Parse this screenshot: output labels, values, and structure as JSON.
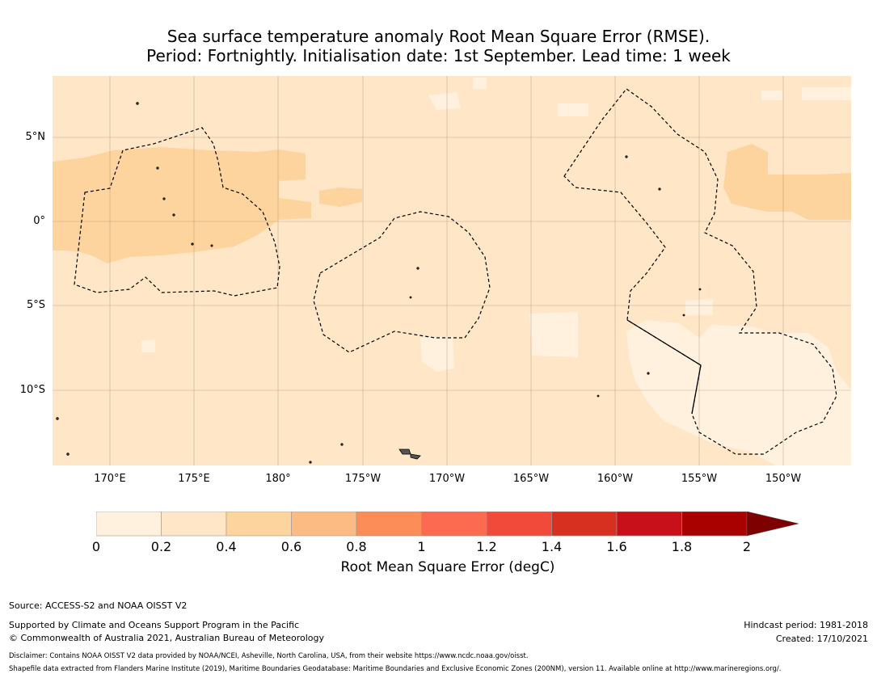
{
  "title": {
    "line1": "Sea surface temperature anomaly Root Mean Square Error (RMSE).",
    "line2": "Period: Fortnightly. Initialisation date: 1st September. Lead time: 1 week"
  },
  "map": {
    "lon_ticks": [
      "170°E",
      "175°E",
      "180°",
      "175°W",
      "170°W",
      "165°W",
      "160°W",
      "155°W",
      "150°W"
    ],
    "lat_ticks": [
      "5°N",
      "0°",
      "5°S",
      "10°S"
    ],
    "background_color": "#fee6c7",
    "regions": [
      {
        "level": "0.4-0.6",
        "color": "#fdd49e"
      },
      {
        "level": "0-0.2",
        "color": "#fff1de"
      }
    ]
  },
  "colorbar": {
    "ticks": [
      "0",
      "0.2",
      "0.4",
      "0.6",
      "0.8",
      "1",
      "1.2",
      "1.4",
      "1.6",
      "1.8",
      "2"
    ],
    "colors": [
      "#fff1de",
      "#fee6c7",
      "#fdd49e",
      "#fdbb84",
      "#fc8d59",
      "#fc6a50",
      "#f24a3a",
      "#d73020",
      "#c8101a",
      "#a90000",
      "#7f0000"
    ],
    "label": "Root Mean Square Error (degC)"
  },
  "footer": {
    "source": "Source: ACCESS-S2 and NOAA OISST V2",
    "supported": "Supported by Climate and Oceans Support Program in the Pacific",
    "copyright": "© Commonwealth of Australia 2021, Australian Bureau of Meteorology",
    "hindcast": "Hindcast period: 1981-2018",
    "created": "Created: 17/10/2021",
    "disclaimer": "Disclaimer: Contains NOAA OISST V2 data provided by NOAA/NCEI, Asheville, North Carolina, USA, from their website https://www.ncdc.noaa.gov/oisst.",
    "shapefile": "Shapefile data extracted from Flanders Marine Institute (2019), Maritime Boundaries Geodatabase: Maritime Boundaries and Exclusive Economic Zones (200NM), version 11. Available online at http://www.marineregions.org/."
  }
}
